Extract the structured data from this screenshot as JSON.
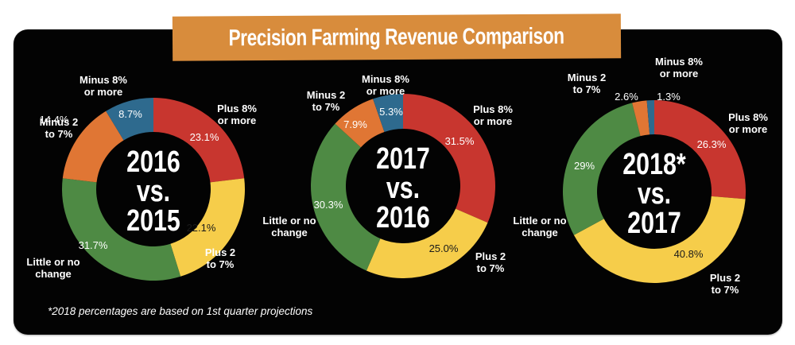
{
  "title": "Precision Farming Revenue Comparison",
  "footnote": "*2018 percentages are based on 1st quarter projections",
  "colors": {
    "panel": "#030303",
    "banner": "#d88c3c",
    "plus8": "#c8362f",
    "plus2": "#f6cd4a",
    "little": "#4e8a44",
    "minus2": "#e07634",
    "minus8": "#2e6a8e"
  },
  "chart_data": [
    {
      "type": "pie",
      "variant": "donut",
      "title": "2016 vs. 2015",
      "center_label": [
        "2016",
        "vs.",
        "2015"
      ],
      "categories": [
        "Plus 8% or more",
        "Plus 2 to 7%",
        "Little or no change",
        "Minus 2 to 7%",
        "Minus 8% or more"
      ],
      "values": [
        23.1,
        22.1,
        31.7,
        14.4,
        8.7
      ],
      "value_labels": [
        "23.1%",
        "22.1%",
        "31.7%",
        "14.4%",
        "8.7%"
      ],
      "category_labels": [
        [
          "Plus 8%",
          "or more"
        ],
        [
          "Plus 2",
          "to 7%"
        ],
        [
          "Little or no",
          "change"
        ],
        [
          "Minus 2",
          "to 7%"
        ],
        [
          "Minus 8%",
          "or more"
        ]
      ]
    },
    {
      "type": "pie",
      "variant": "donut",
      "title": "2017 vs. 2016",
      "center_label": [
        "2017",
        "vs.",
        "2016"
      ],
      "categories": [
        "Plus 8% or more",
        "Plus 2 to 7%",
        "Little or no change",
        "Minus 2 to 7%",
        "Minus 8% or more"
      ],
      "values": [
        31.5,
        25.0,
        30.3,
        7.9,
        5.3
      ],
      "value_labels": [
        "31.5%",
        "25.0%",
        "30.3%",
        "7.9%",
        "5.3%"
      ],
      "category_labels": [
        [
          "Plus 8%",
          "or more"
        ],
        [
          "Plus 2",
          "to 7%"
        ],
        [
          "Little or no",
          "change"
        ],
        [
          "Minus 2",
          "to 7%"
        ],
        [
          "Minus 8%",
          "or more"
        ]
      ]
    },
    {
      "type": "pie",
      "variant": "donut",
      "title": "2018* vs. 2017",
      "center_label": [
        "2018*",
        "vs.",
        "2017"
      ],
      "categories": [
        "Plus 8% or more",
        "Plus 2 to 7%",
        "Little or no change",
        "Minus 2 to 7%",
        "Minus 8% or more"
      ],
      "values": [
        26.3,
        40.8,
        29,
        2.6,
        1.3
      ],
      "value_labels": [
        "26.3%",
        "40.8%",
        "29%",
        "2.6%",
        "1.3%"
      ],
      "category_labels": [
        [
          "Plus 8%",
          "or more"
        ],
        [
          "Plus 2",
          "to 7%"
        ],
        [
          "Little or no",
          "change"
        ],
        [
          "Minus 2",
          "to 7%"
        ],
        [
          "Minus 8%",
          "or more"
        ]
      ]
    }
  ]
}
